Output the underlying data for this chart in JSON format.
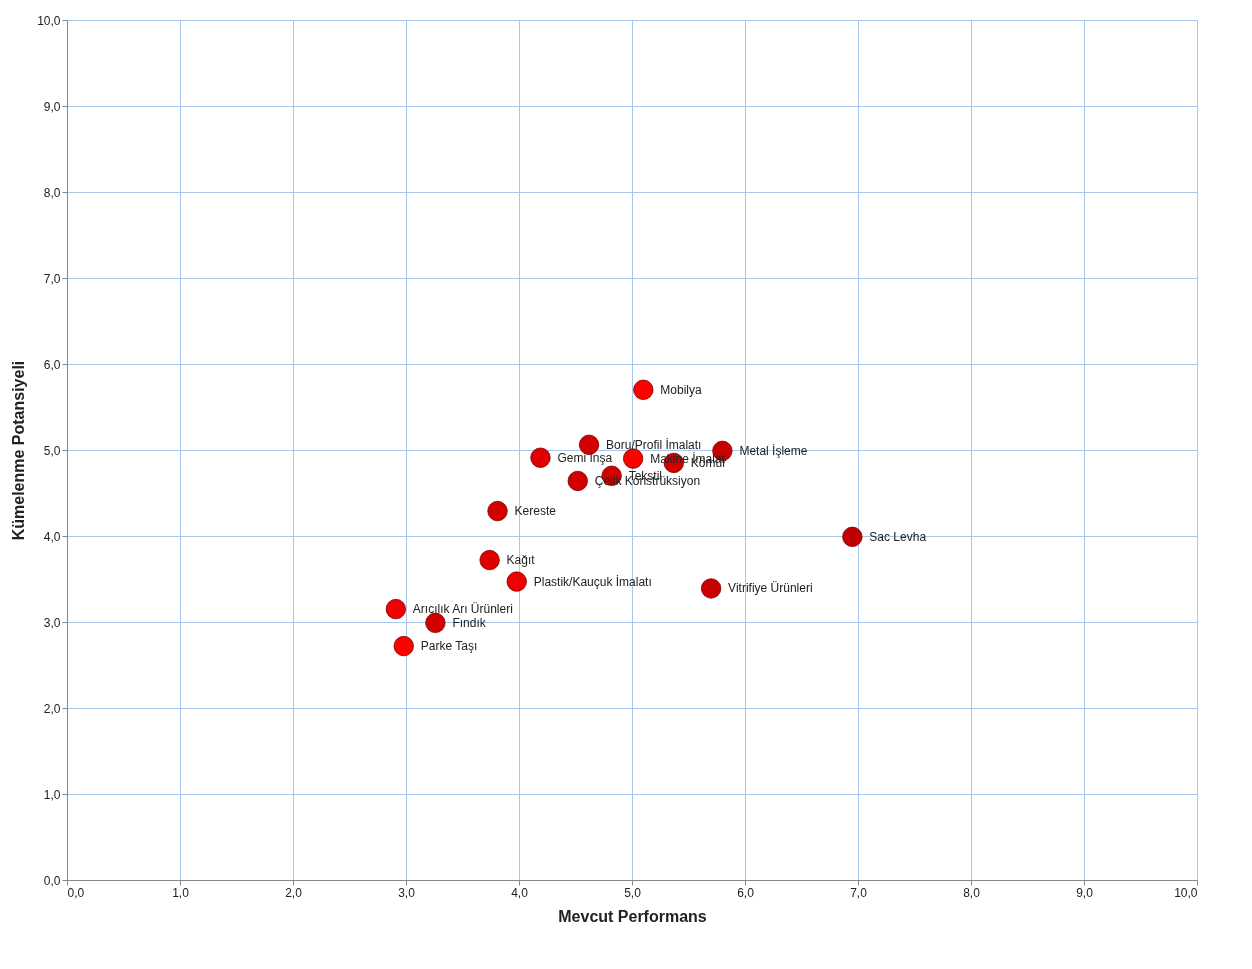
{
  "chart_data": {
    "type": "scatter",
    "xlabel": "Mevcut Performans",
    "ylabel": "Kümelenme Potansiyeli",
    "xlim": [
      0,
      10
    ],
    "ylim": [
      0,
      10
    ],
    "xticks": [
      {
        "value": 0,
        "label": "0,0"
      },
      {
        "value": 1,
        "label": "1,0"
      },
      {
        "value": 2,
        "label": "2,0"
      },
      {
        "value": 3,
        "label": "3,0"
      },
      {
        "value": 4,
        "label": "4,0"
      },
      {
        "value": 5,
        "label": "5,0"
      },
      {
        "value": 6,
        "label": "6,0"
      },
      {
        "value": 7,
        "label": "7,0"
      },
      {
        "value": 8,
        "label": "8,0"
      },
      {
        "value": 9,
        "label": "9,0"
      },
      {
        "value": 10,
        "label": "10,0"
      }
    ],
    "yticks": [
      {
        "value": 0,
        "label": "0,0"
      },
      {
        "value": 1,
        "label": "1,0"
      },
      {
        "value": 2,
        "label": "2,0"
      },
      {
        "value": 3,
        "label": "3,0"
      },
      {
        "value": 4,
        "label": "4,0"
      },
      {
        "value": 5,
        "label": "5,0"
      },
      {
        "value": 6,
        "label": "6,0"
      },
      {
        "value": 7,
        "label": "7,0"
      },
      {
        "value": 8,
        "label": "8,0"
      },
      {
        "value": 9,
        "label": "9,0"
      },
      {
        "value": 10,
        "label": "10,0"
      }
    ],
    "grid": true,
    "marker": "circle",
    "x": [
      5.1,
      4.62,
      4.19,
      5.01,
      5.37,
      5.8,
      4.82,
      4.52,
      3.81,
      6.95,
      3.74,
      3.98,
      5.7,
      2.91,
      3.26,
      2.98
    ],
    "values": [
      5.7,
      5.06,
      4.91,
      4.9,
      4.85,
      4.99,
      4.7,
      4.64,
      4.29,
      3.99,
      3.72,
      3.47,
      3.39,
      3.15,
      2.99,
      2.72
    ],
    "colors": [
      "#ff0000",
      "#d40000",
      "#e00000",
      "#ff0000",
      "#d40000",
      "#c80000",
      "#d40000",
      "#d40000",
      "#d40000",
      "#c00000",
      "#e00000",
      "#f00000",
      "#c80000",
      "#f00000",
      "#d40000",
      "#ff0000"
    ],
    "annotations": [
      {
        "text": "Mobilya",
        "x": 5.1,
        "y": 5.7
      },
      {
        "text": "Boru/Profil İmalatı",
        "x": 4.62,
        "y": 5.06
      },
      {
        "text": "Gemi İnşa",
        "x": 4.19,
        "y": 4.91
      },
      {
        "text": "Makine İmalat",
        "x": 5.01,
        "y": 4.9
      },
      {
        "text": "Kömür",
        "x": 5.37,
        "y": 4.85
      },
      {
        "text": "Metal İşleme",
        "x": 5.8,
        "y": 4.99
      },
      {
        "text": "Tekstil",
        "x": 4.82,
        "y": 4.7
      },
      {
        "text": "Çelik Konstrüksiyon",
        "x": 4.52,
        "y": 4.64
      },
      {
        "text": "Kereste",
        "x": 3.81,
        "y": 4.29
      },
      {
        "text": "Sac Levha",
        "x": 6.95,
        "y": 3.99
      },
      {
        "text": "Kağıt",
        "x": 3.74,
        "y": 3.72
      },
      {
        "text": "Plastik/Kauçuk İmalatı",
        "x": 3.98,
        "y": 3.47
      },
      {
        "text": "Vitrifiye Ürünleri",
        "x": 5.7,
        "y": 3.39
      },
      {
        "text": "Arıcılık Arı Ürünleri",
        "x": 2.91,
        "y": 3.15
      },
      {
        "text": "Fındık",
        "x": 3.26,
        "y": 2.99
      },
      {
        "text": "Parke Taşı",
        "x": 2.98,
        "y": 2.72
      }
    ]
  }
}
